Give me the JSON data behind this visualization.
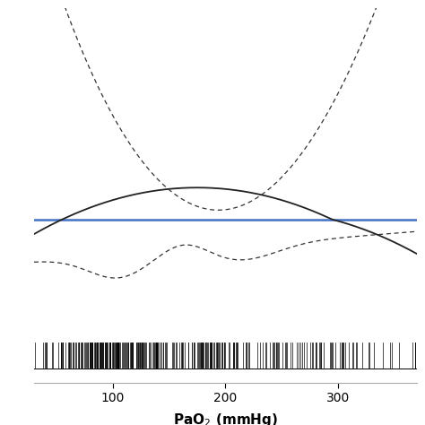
{
  "xlim": [
    30,
    370
  ],
  "ylim_main": [
    -2.0,
    3.5
  ],
  "hline_y": 0.0,
  "hline_color": "#4472C4",
  "hline_lw": 1.8,
  "main_curve_color": "#222222",
  "ci_curve_color": "#333333",
  "xlabel": "PaO$_2$ (mmHg)",
  "xticks": [
    100,
    200,
    300
  ],
  "background_color": "#ffffff",
  "rug_seed": 42
}
